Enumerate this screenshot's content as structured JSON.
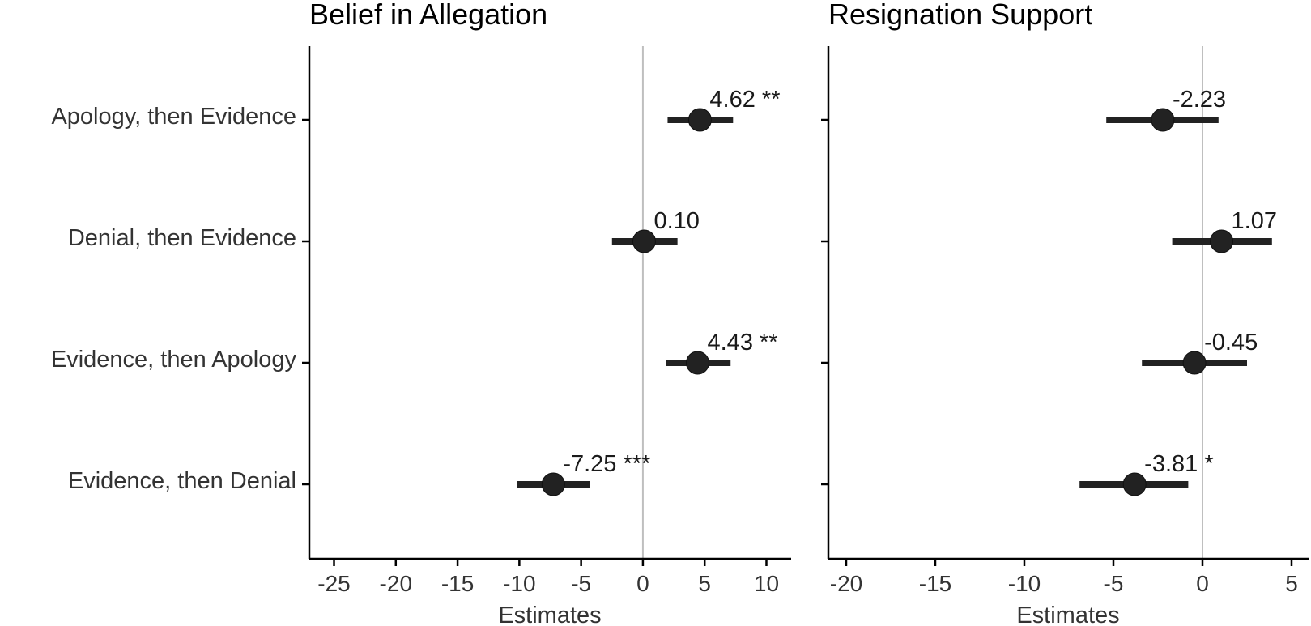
{
  "chart_data": {
    "type": "forest",
    "categories": [
      "Apology, then Evidence",
      "Denial, then Evidence",
      "Evidence, then Apology",
      "Evidence, then Denial"
    ],
    "colors": {
      "mark": "#222222",
      "axis": "#000000",
      "zero_line": "#bfbfbf"
    },
    "panels": [
      {
        "title": "Belief in Allegation",
        "xlabel": "Estimates",
        "xlim": [
          -27,
          12
        ],
        "xticks": [
          "-25",
          "-20",
          "-15",
          "-10",
          "-5",
          "0",
          "5",
          "10"
        ],
        "points": [
          {
            "estimate": 4.62,
            "lo": 2.0,
            "hi": 7.3,
            "label": "4.62 **"
          },
          {
            "estimate": 0.1,
            "lo": -2.5,
            "hi": 2.8,
            "label": "0.10"
          },
          {
            "estimate": 4.43,
            "lo": 1.9,
            "hi": 7.1,
            "label": "4.43 **"
          },
          {
            "estimate": -7.25,
            "lo": -10.2,
            "hi": -4.3,
            "label": "-7.25 ***"
          }
        ]
      },
      {
        "title": "Resignation Support",
        "xlabel": "Estimates",
        "xlim": [
          -21,
          6
        ],
        "xticks": [
          "-20",
          "-15",
          "-10",
          "-5",
          "0",
          "5"
        ],
        "points": [
          {
            "estimate": -2.23,
            "lo": -5.4,
            "hi": 0.9,
            "label": "-2.23"
          },
          {
            "estimate": 1.07,
            "lo": -1.7,
            "hi": 3.9,
            "label": "1.07"
          },
          {
            "estimate": -0.45,
            "lo": -3.4,
            "hi": 2.5,
            "label": "-0.45"
          },
          {
            "estimate": -3.81,
            "lo": -6.9,
            "hi": -0.8,
            "label": "-3.81 *"
          }
        ]
      }
    ]
  }
}
